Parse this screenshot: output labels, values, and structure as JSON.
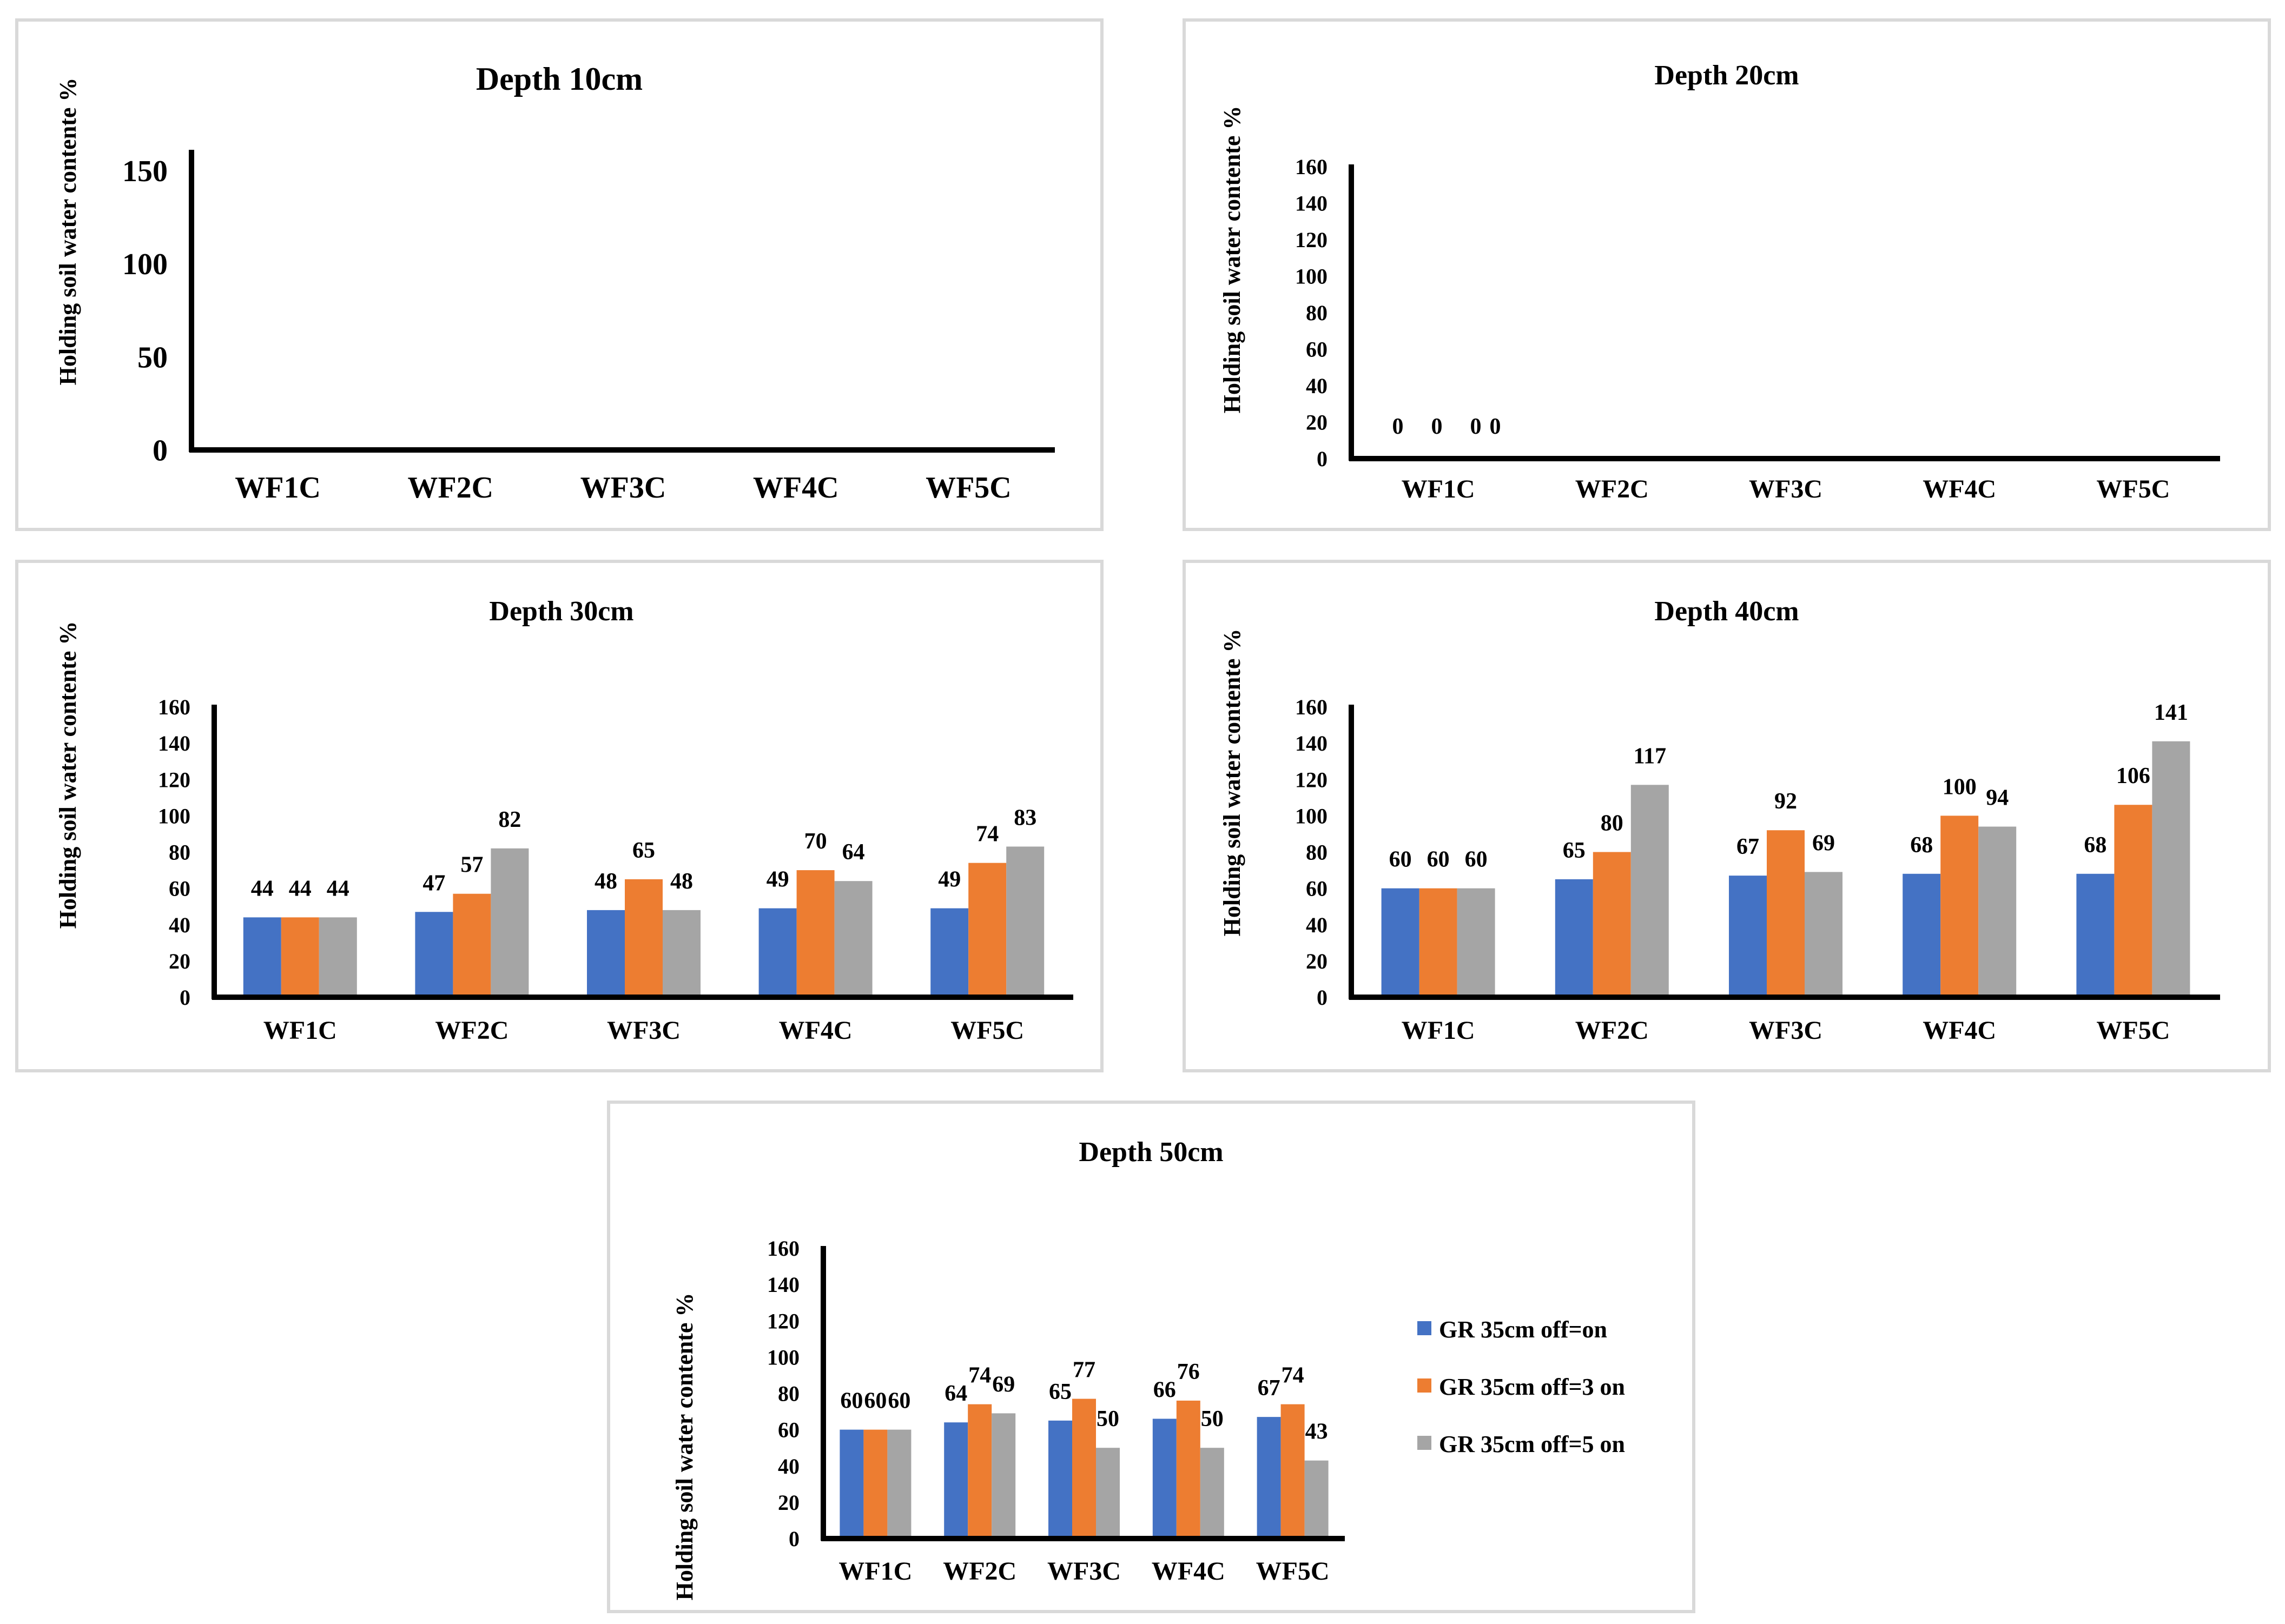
{
  "y_axis_label": "Holding soil water contente %",
  "legend": {
    "items": [
      {
        "label": "GR 35cm off=on",
        "color": "#4472C4"
      },
      {
        "label": "GR 35cm off=3 on",
        "color": "#ED7D31"
      },
      {
        "label": "GR 35cm off=5 on",
        "color": "#A5A5A5"
      }
    ]
  },
  "chart_data": [
    {
      "type": "bar",
      "title": "Depth 10cm",
      "xlabel": "",
      "ylabel": "Holding soil water contente %",
      "categories": [
        "WF1C",
        "WF2C",
        "WF3C",
        "WF4C",
        "WF5C"
      ],
      "ylim": [
        0,
        160
      ],
      "yticks": [
        0,
        50,
        100,
        150
      ],
      "series": []
    },
    {
      "type": "bar",
      "title": "Depth 20cm",
      "xlabel": "",
      "ylabel": "Holding soil water contente %",
      "categories": [
        "WF1C",
        "WF2C",
        "WF3C",
        "WF4C",
        "WF5C"
      ],
      "ylim": [
        0,
        160
      ],
      "yticks": [
        0,
        20,
        40,
        60,
        80,
        100,
        120,
        140,
        160
      ],
      "series": [
        {
          "name": "GR 35cm off=on",
          "values": [
            0,
            0,
            null,
            null,
            null
          ]
        },
        {
          "name": "GR 35cm off=3 on",
          "values": [
            0,
            null,
            null,
            null,
            null
          ]
        },
        {
          "name": "GR 35cm off=5 on",
          "values": [
            0,
            null,
            null,
            null,
            null
          ]
        }
      ]
    },
    {
      "type": "bar",
      "title": "Depth 30cm",
      "xlabel": "",
      "ylabel": "Holding soil water contente %",
      "categories": [
        "WF1C",
        "WF2C",
        "WF3C",
        "WF4C",
        "WF5C"
      ],
      "ylim": [
        0,
        160
      ],
      "yticks": [
        0,
        20,
        40,
        60,
        80,
        100,
        120,
        140,
        160
      ],
      "series": [
        {
          "name": "GR 35cm off=on",
          "values": [
            44,
            47,
            48,
            49,
            49
          ]
        },
        {
          "name": "GR 35cm off=3 on",
          "values": [
            44,
            57,
            65,
            70,
            74
          ]
        },
        {
          "name": "GR 35cm off=5 on",
          "values": [
            44,
            82,
            48,
            64,
            83
          ]
        }
      ]
    },
    {
      "type": "bar",
      "title": "Depth 40cm",
      "xlabel": "",
      "ylabel": "Holding soil water contente %",
      "categories": [
        "WF1C",
        "WF2C",
        "WF3C",
        "WF4C",
        "WF5C"
      ],
      "ylim": [
        0,
        160
      ],
      "yticks": [
        0,
        20,
        40,
        60,
        80,
        100,
        120,
        140,
        160
      ],
      "series": [
        {
          "name": "GR 35cm off=on",
          "values": [
            60,
            65,
            67,
            68,
            68
          ]
        },
        {
          "name": "GR 35cm off=3 on",
          "values": [
            60,
            80,
            92,
            100,
            106
          ]
        },
        {
          "name": "GR 35cm off=5 on",
          "values": [
            60,
            117,
            69,
            94,
            141
          ]
        }
      ]
    },
    {
      "type": "bar",
      "title": "Depth 50cm",
      "xlabel": "",
      "ylabel": "Holding soil water contente %",
      "categories": [
        "WF1C",
        "WF2C",
        "WF3C",
        "WF4C",
        "WF5C"
      ],
      "ylim": [
        0,
        160
      ],
      "yticks": [
        0,
        20,
        40,
        60,
        80,
        100,
        120,
        140,
        160
      ],
      "series": [
        {
          "name": "GR 35cm off=on",
          "values": [
            60,
            64,
            65,
            66,
            67
          ]
        },
        {
          "name": "GR 35cm off=3 on",
          "values": [
            60,
            74,
            77,
            76,
            74
          ]
        },
        {
          "name": "GR 35cm off=5 on",
          "values": [
            60,
            69,
            50,
            50,
            43
          ]
        }
      ]
    }
  ]
}
